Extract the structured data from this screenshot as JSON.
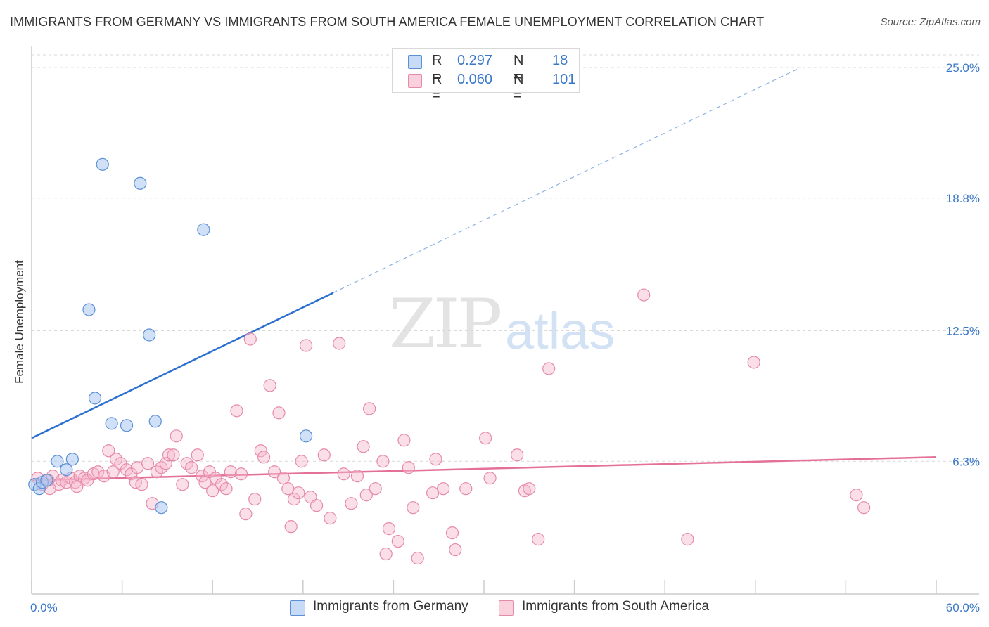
{
  "title": "IMMIGRANTS FROM GERMANY VS IMMIGRANTS FROM SOUTH AMERICA FEMALE UNEMPLOYMENT CORRELATION CHART",
  "source": "Source: ZipAtlas.com",
  "watermark": {
    "zip": "ZIP",
    "atlas": "atlas"
  },
  "legend": {
    "rows": [
      {
        "r_label": "R =",
        "r_value": "0.297",
        "n_label": "N =",
        "n_value": "18",
        "color": "#a9c8f0"
      },
      {
        "r_label": "R =",
        "r_value": "0.060",
        "n_label": "N =",
        "n_value": "101",
        "color": "#f7b9cc"
      }
    ]
  },
  "bottom_legend": {
    "germany": "Immigrants from Germany",
    "south_america": "Immigrants from South America"
  },
  "colors": {
    "germany_fill": "#a9c8f0",
    "germany_stroke": "#5b8fd6",
    "germany_line": "#2b6fd1",
    "sa_fill": "#f7b9cc",
    "sa_stroke": "#e58aa8",
    "sa_line": "#e4709a",
    "axis_tick": "#3a78c9",
    "grid": "#d9d9d9"
  },
  "chart_data": {
    "type": "scatter",
    "title": "IMMIGRANTS FROM GERMANY VS IMMIGRANTS FROM SOUTH AMERICA FEMALE UNEMPLOYMENT CORRELATION CHART",
    "xlabel": "",
    "ylabel": "Female Unemployment",
    "xlim": [
      0,
      60
    ],
    "ylim": [
      0,
      25
    ],
    "x_tick_labels": [
      "0.0%",
      "60.0%"
    ],
    "y_ticks": [
      6.3,
      12.5,
      18.8,
      25.0
    ],
    "y_tick_labels": [
      "6.3%",
      "12.5%",
      "18.8%",
      "25.0%"
    ],
    "grid": true,
    "series": [
      {
        "name": "Immigrants from Germany",
        "points": [
          [
            0.2,
            5.2
          ],
          [
            0.5,
            5.0
          ],
          [
            0.7,
            5.3
          ],
          [
            1.0,
            5.4
          ],
          [
            1.7,
            6.3
          ],
          [
            2.3,
            5.9
          ],
          [
            2.7,
            6.4
          ],
          [
            3.8,
            13.5
          ],
          [
            4.2,
            9.3
          ],
          [
            4.7,
            20.4
          ],
          [
            5.3,
            8.1
          ],
          [
            6.3,
            8.0
          ],
          [
            7.2,
            19.5
          ],
          [
            7.8,
            12.3
          ],
          [
            8.2,
            8.2
          ],
          [
            8.6,
            4.1
          ],
          [
            11.4,
            17.3
          ],
          [
            18.2,
            7.5
          ]
        ],
        "trend": {
          "x0": 0,
          "y0": 7.4,
          "x1": 20,
          "y1": 14.3,
          "dash_to_x": 51,
          "dash_to_y": 25.0
        }
      },
      {
        "name": "Immigrants from South America",
        "points": [
          [
            0.4,
            5.5
          ],
          [
            0.7,
            5.2
          ],
          [
            1.1,
            5.4
          ],
          [
            1.4,
            5.6
          ],
          [
            1.8,
            5.2
          ],
          [
            2.0,
            5.4
          ],
          [
            2.3,
            5.3
          ],
          [
            2.6,
            5.5
          ],
          [
            2.9,
            5.3
          ],
          [
            3.2,
            5.6
          ],
          [
            3.5,
            5.5
          ],
          [
            3.7,
            5.4
          ],
          [
            4.1,
            5.7
          ],
          [
            4.4,
            5.8
          ],
          [
            4.8,
            5.6
          ],
          [
            5.1,
            6.8
          ],
          [
            5.4,
            5.8
          ],
          [
            5.6,
            6.4
          ],
          [
            5.9,
            6.2
          ],
          [
            6.3,
            5.9
          ],
          [
            6.6,
            5.7
          ],
          [
            6.9,
            5.3
          ],
          [
            7.3,
            5.2
          ],
          [
            7.7,
            6.2
          ],
          [
            8.0,
            4.3
          ],
          [
            8.3,
            5.8
          ],
          [
            8.6,
            6.0
          ],
          [
            8.9,
            6.2
          ],
          [
            9.1,
            6.6
          ],
          [
            9.4,
            6.6
          ],
          [
            9.6,
            7.5
          ],
          [
            10.0,
            5.2
          ],
          [
            10.3,
            6.2
          ],
          [
            10.6,
            6.0
          ],
          [
            11.0,
            6.6
          ],
          [
            11.3,
            5.6
          ],
          [
            11.5,
            5.3
          ],
          [
            11.8,
            5.8
          ],
          [
            12.2,
            5.5
          ],
          [
            12.6,
            5.2
          ],
          [
            12.9,
            5.0
          ],
          [
            13.2,
            5.8
          ],
          [
            13.6,
            8.7
          ],
          [
            13.9,
            5.7
          ],
          [
            14.2,
            3.8
          ],
          [
            14.5,
            12.1
          ],
          [
            14.8,
            4.5
          ],
          [
            15.2,
            6.8
          ],
          [
            15.4,
            6.5
          ],
          [
            15.8,
            9.9
          ],
          [
            16.1,
            5.8
          ],
          [
            16.4,
            8.6
          ],
          [
            16.7,
            5.5
          ],
          [
            17.0,
            5.0
          ],
          [
            17.2,
            3.2
          ],
          [
            17.4,
            4.5
          ],
          [
            17.7,
            4.8
          ],
          [
            17.9,
            6.3
          ],
          [
            18.2,
            11.8
          ],
          [
            18.5,
            4.6
          ],
          [
            18.9,
            4.2
          ],
          [
            19.4,
            6.6
          ],
          [
            19.8,
            3.6
          ],
          [
            20.4,
            11.9
          ],
          [
            20.7,
            5.7
          ],
          [
            21.2,
            4.3
          ],
          [
            21.6,
            5.6
          ],
          [
            22.0,
            7.0
          ],
          [
            22.2,
            4.7
          ],
          [
            22.4,
            8.8
          ],
          [
            22.8,
            5.0
          ],
          [
            23.3,
            6.3
          ],
          [
            23.5,
            1.9
          ],
          [
            23.7,
            3.1
          ],
          [
            24.3,
            2.5
          ],
          [
            24.7,
            7.3
          ],
          [
            25.0,
            6.0
          ],
          [
            25.3,
            4.1
          ],
          [
            25.6,
            1.7
          ],
          [
            26.6,
            4.8
          ],
          [
            26.8,
            6.4
          ],
          [
            27.3,
            5.0
          ],
          [
            27.9,
            2.9
          ],
          [
            28.1,
            2.1
          ],
          [
            28.8,
            5.0
          ],
          [
            30.1,
            7.4
          ],
          [
            30.4,
            5.5
          ],
          [
            32.2,
            6.6
          ],
          [
            32.7,
            4.9
          ],
          [
            33.0,
            5.0
          ],
          [
            33.6,
            2.6
          ],
          [
            34.3,
            10.7
          ],
          [
            40.6,
            14.2
          ],
          [
            43.5,
            2.6
          ],
          [
            47.9,
            11.0
          ],
          [
            54.7,
            4.7
          ],
          [
            55.2,
            4.1
          ],
          [
            1.2,
            5.0
          ],
          [
            3.0,
            5.1
          ],
          [
            7.0,
            6.0
          ],
          [
            12.0,
            4.9
          ]
        ],
        "trend": {
          "x0": 0,
          "y0": 5.4,
          "x1": 60,
          "y1": 6.5
        }
      }
    ]
  }
}
